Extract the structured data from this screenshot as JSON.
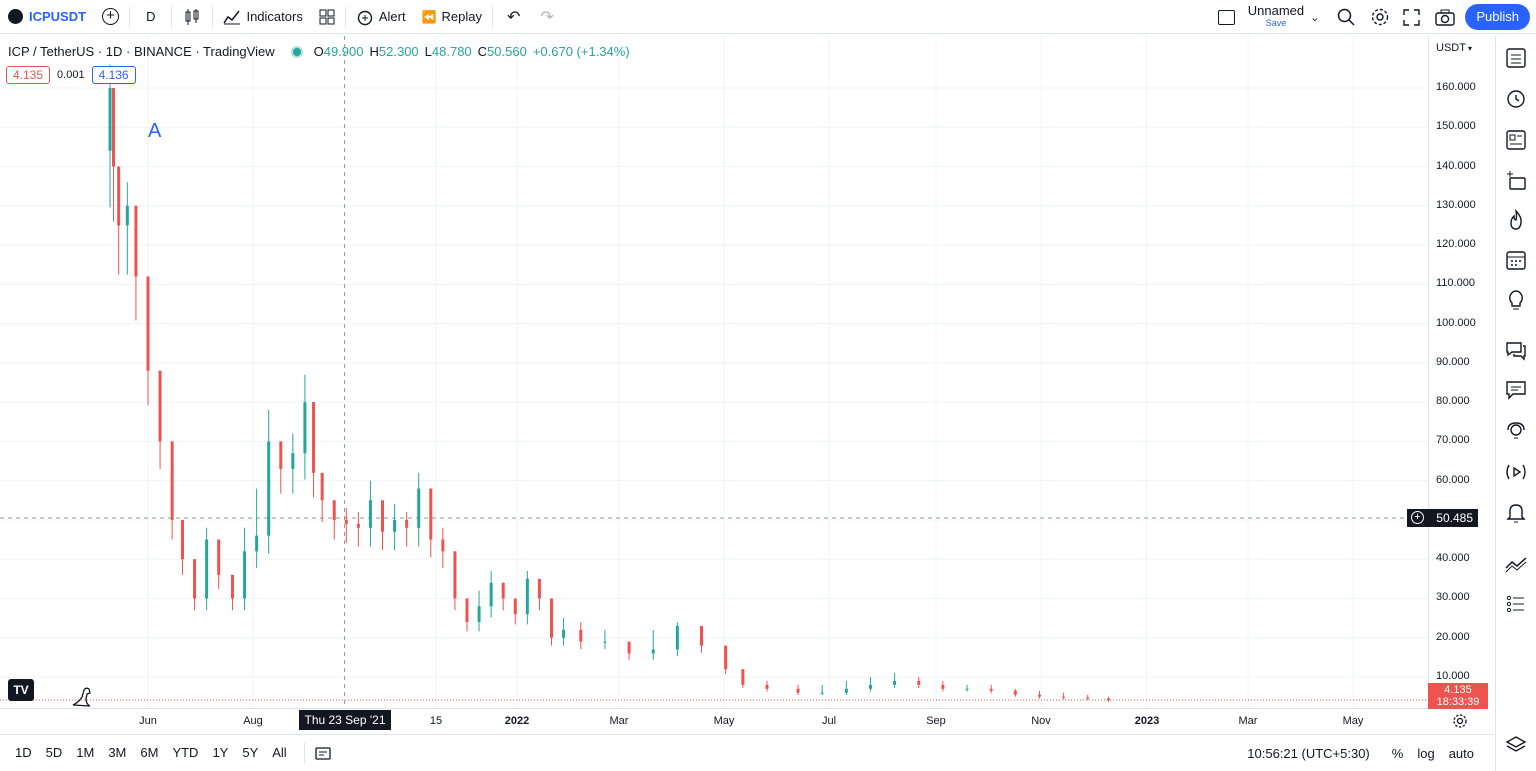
{
  "toolbar": {
    "symbol": "ICPUSDT",
    "interval": "D",
    "indicators_label": "Indicators",
    "alert_label": "Alert",
    "replay_label": "Replay",
    "layout_name": "Unnamed",
    "layout_save": "Save",
    "publish_label": "Publish"
  },
  "legend": {
    "title": "ICP / TetherUS · 1D · BINANCE · TradingView",
    "o_label": "O",
    "o": "49.900",
    "h_label": "H",
    "h": "52.300",
    "l_label": "L",
    "l": "48.780",
    "c_label": "C",
    "c": "50.560",
    "change": "+0.670 (+1.34%)"
  },
  "quote": {
    "sell": "4.135",
    "spread": "0.001",
    "buy": "4.136"
  },
  "drawing_text": "A",
  "price_axis": {
    "currency": "USDT",
    "crosshair_price": "50.485",
    "last_price": "4.135",
    "countdown": "18:33:39",
    "ticks": [
      "160.000",
      "150.000",
      "140.000",
      "130.000",
      "120.000",
      "110.000",
      "100.000",
      "90.000",
      "80.000",
      "70.000",
      "60.000",
      "50.000",
      "40.000",
      "30.000",
      "20.000",
      "10.000"
    ]
  },
  "time_axis": {
    "crosshair_date": "Thu 23 Sep '21",
    "labels": [
      "Jun",
      "Aug",
      "15",
      "2022",
      "Mar",
      "May",
      "Jul",
      "Sep",
      "Nov",
      "2023",
      "Mar",
      "May"
    ]
  },
  "bottombar": {
    "ranges": [
      "1D",
      "5D",
      "1M",
      "3M",
      "6M",
      "YTD",
      "1Y",
      "5Y",
      "All"
    ],
    "clock": "10:56:21 (UTC+5:30)",
    "pct_label": "%",
    "log_label": "log",
    "auto_label": "auto"
  },
  "colors": {
    "up": "#26a69a",
    "down": "#ef5350",
    "accent": "#2962ff"
  },
  "chart_data": {
    "type": "candlestick",
    "title": "ICP / TetherUS · 1D · BINANCE",
    "ylim": [
      0,
      170
    ],
    "x": [
      "2021-05-10",
      "2021-05-12",
      "2021-05-15",
      "2021-05-20",
      "2021-05-25",
      "2021-06-01",
      "2021-06-08",
      "2021-06-15",
      "2021-06-21",
      "2021-06-28",
      "2021-07-05",
      "2021-07-12",
      "2021-07-20",
      "2021-07-27",
      "2021-08-03",
      "2021-08-10",
      "2021-08-17",
      "2021-08-24",
      "2021-08-31",
      "2021-09-05",
      "2021-09-10",
      "2021-09-17",
      "2021-09-24",
      "2021-10-01",
      "2021-10-08",
      "2021-10-15",
      "2021-10-22",
      "2021-10-29",
      "2021-11-05",
      "2021-11-12",
      "2021-11-19",
      "2021-11-26",
      "2021-12-03",
      "2021-12-10",
      "2021-12-17",
      "2021-12-24",
      "2021-12-31",
      "2022-01-07",
      "2022-01-14",
      "2022-01-21",
      "2022-01-28",
      "2022-02-07",
      "2022-02-21",
      "2022-03-07",
      "2022-03-21",
      "2022-04-04",
      "2022-04-18",
      "2022-05-02",
      "2022-05-12",
      "2022-05-26",
      "2022-06-13",
      "2022-06-27",
      "2022-07-11",
      "2022-07-25",
      "2022-08-08",
      "2022-08-22",
      "2022-09-05",
      "2022-09-19",
      "2022-10-03",
      "2022-10-17",
      "2022-10-31",
      "2022-11-14",
      "2022-11-28",
      "2022-12-10"
    ],
    "close": [
      160,
      140,
      125,
      130,
      112,
      88,
      70,
      50,
      40,
      30,
      45,
      36,
      30,
      42,
      46,
      70,
      63,
      67,
      80,
      62,
      55,
      50,
      49,
      48,
      55,
      47,
      50,
      48,
      58,
      45,
      42,
      30,
      24,
      28,
      34,
      30,
      26,
      35,
      30,
      20,
      22,
      19,
      19,
      16,
      17,
      23,
      18,
      12,
      8,
      7,
      6,
      6,
      7,
      8,
      9,
      8,
      7,
      7,
      6.5,
      5.5,
      5,
      4.8,
      4.5,
      4.1
    ],
    "high": [
      166,
      152,
      140,
      136,
      125,
      98,
      80,
      58,
      48,
      40,
      48,
      42,
      36,
      48,
      58,
      78,
      70,
      72,
      87,
      68,
      58,
      52,
      53,
      52,
      60,
      50,
      54,
      52,
      62,
      50,
      48,
      34,
      28,
      32,
      37,
      33,
      30,
      37,
      34,
      24,
      25,
      24,
      22,
      19,
      22,
      24,
      20,
      14,
      11,
      9,
      8,
      8,
      9,
      10,
      11,
      10,
      9,
      8,
      8,
      7,
      6.5,
      6,
      5.5,
      5
    ]
  }
}
